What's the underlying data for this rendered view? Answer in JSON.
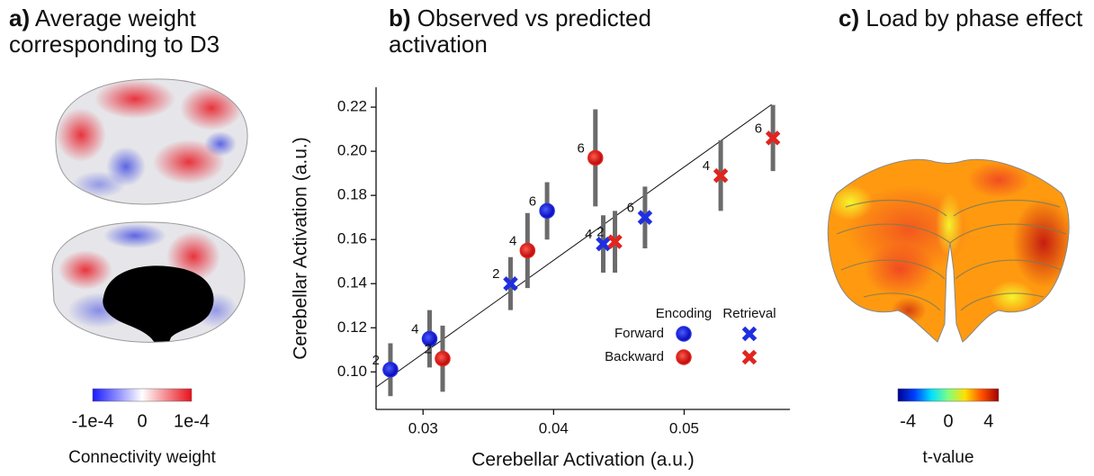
{
  "panel_a": {
    "panel_label": "a)",
    "title": "Average weight corresponding to D3",
    "colorbar": {
      "lim": [
        -0.0001,
        0.0001
      ],
      "colors": [
        "#1a1aff",
        "#ffffff",
        "#e8101a"
      ],
      "ticks": [
        {
          "value": -0.0001,
          "label": "-1e-4"
        },
        0,
        {
          "value": 0.0001,
          "label": "1e-4"
        }
      ],
      "label": "Connectivity weight"
    }
  },
  "chart_data": {
    "type": "scatter",
    "panel_label": "b)",
    "title": "Observed vs predicted activation",
    "x_label": "Cerebellar Activation (a.u.)",
    "y_label": "Cerebellar Activation (a.u.)",
    "xlim": [
      0.0264,
      0.0581
    ],
    "ylim": [
      0.083,
      0.229
    ],
    "xticks": [
      0.03,
      0.04,
      0.05
    ],
    "yticks": [
      {
        "value": 0.1,
        "label": "0.10"
      },
      0.12,
      0.14,
      0.16,
      0.18,
      {
        "value": 0.2,
        "label": "0.20"
      },
      0.22
    ],
    "fit_line": {
      "x": [
        0.0264,
        0.0567
      ],
      "y": [
        0.0931,
        0.2212
      ]
    },
    "series": [
      {
        "name": "Forward",
        "group": "Encoding",
        "marker": "circle",
        "color": "#1f2fe0",
        "x": [
          0.0275,
          0.0305,
          0.0395
        ],
        "values": [
          0.101,
          0.115,
          0.173
        ],
        "errors": [
          0.012,
          0.013,
          0.013
        ],
        "labels": [
          2,
          4,
          6
        ]
      },
      {
        "name": "Backward",
        "group": "Encoding",
        "marker": "circle",
        "color": "#e0251f",
        "x": [
          0.0315,
          0.038,
          0.0432
        ],
        "values": [
          0.106,
          0.155,
          0.197
        ],
        "errors": [
          0.015,
          0.017,
          0.022
        ],
        "labels": [
          2,
          4,
          6
        ]
      },
      {
        "name": "Forward",
        "group": "Retrieval",
        "marker": "cross",
        "color": "#1f2fe0",
        "x": [
          0.0367,
          0.0438,
          0.047
        ],
        "values": [
          0.14,
          0.158,
          0.17
        ],
        "errors": [
          0.012,
          0.013,
          0.014
        ],
        "labels": [
          2,
          4,
          6
        ]
      },
      {
        "name": "Backward",
        "group": "Retrieval",
        "marker": "cross",
        "color": "#e0251f",
        "x": [
          0.0447,
          0.0528,
          0.0568
        ],
        "values": [
          0.159,
          0.189,
          0.206
        ],
        "errors": [
          0.014,
          0.016,
          0.015
        ],
        "labels": [
          2,
          4,
          6
        ]
      }
    ]
  },
  "panel_c": {
    "panel_label": "c)",
    "title": "Load by phase effect",
    "colorbar": {
      "lim": [
        -5,
        5
      ],
      "colors": [
        "#00008f",
        "#0040ff",
        "#00e0ff",
        "#80ff80",
        "#ffe000",
        "#ff5000",
        "#a00000"
      ],
      "ticks": [
        -4,
        0,
        4
      ],
      "label": "t-value"
    }
  }
}
